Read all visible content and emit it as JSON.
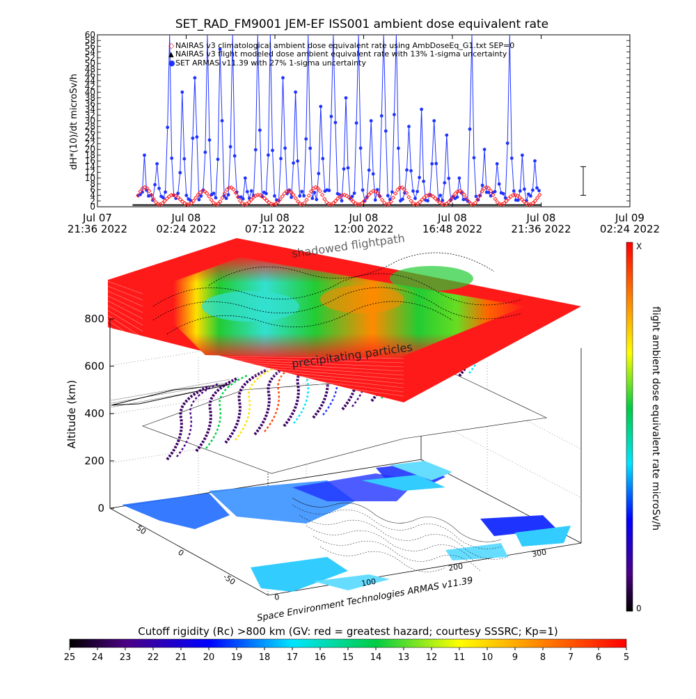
{
  "chart_data": [
    {
      "type": "line",
      "title": "SET_RAD_FM9001  JEM-EF ISS001 ambient dose equivalent rate",
      "ylabel": "dH*(10)/dt microSv/h",
      "ylim": [
        0,
        60
      ],
      "yticks": [
        0,
        2,
        4,
        6,
        8,
        10,
        12,
        14,
        16,
        18,
        20,
        22,
        24,
        26,
        28,
        30,
        32,
        34,
        36,
        38,
        40,
        42,
        44,
        46,
        48,
        50,
        52,
        54,
        56,
        58,
        60
      ],
      "xticks": [
        {
          "l1": "Jul 07",
          "l2": "21:36 2022"
        },
        {
          "l1": "Jul 08",
          "l2": "02:24 2022"
        },
        {
          "l1": "Jul 08",
          "l2": "07:12 2022"
        },
        {
          "l1": "Jul 08",
          "l2": "12:00 2022"
        },
        {
          "l1": "Jul 08",
          "l2": "16:48 2022"
        },
        {
          "l1": "Jul 08",
          "l2": "21:36 2022"
        },
        {
          "l1": "Jul 09",
          "l2": "02:24 2022"
        }
      ],
      "xlim_hours": [
        0,
        28.8
      ],
      "legend_position": "top-left",
      "series": [
        {
          "name": "NAIRAS v3 climatological ambient dose equivalent rate using AmbDoseEq_G1.txt SEP=0",
          "symbol": "open-diamond",
          "color": "#ff2020",
          "period_hours": 1.54,
          "min": 0.8,
          "max": 7.0,
          "start": 2.2,
          "end": 24.0
        },
        {
          "name": "NAIRAS v3 flight modeled dose ambient equivalent rate with 13% 1-sigma uncertainty",
          "symbol": "triangle",
          "color": "#000000",
          "value": 0.6,
          "start": 2.2,
          "end": 24.0
        },
        {
          "name": "SET ARMAS v11.39 with 27% 1-sigma uncertainty",
          "symbol": "filled-circle",
          "color": "#1f33ff",
          "start": 2.2,
          "end": 24.0,
          "baseline": [
            2,
            6
          ],
          "peaks": [
            18,
            15,
            62,
            40,
            45,
            62,
            55,
            60,
            10,
            62,
            62,
            45,
            40,
            62,
            35,
            62,
            38,
            62,
            30,
            62,
            62,
            28,
            34,
            30,
            25,
            10,
            62,
            20,
            15,
            62,
            18,
            16
          ]
        }
      ]
    },
    {
      "type": "3d-surface",
      "zlabel": "Altitude (km)",
      "zticks": [
        0,
        200,
        400,
        600,
        800
      ],
      "lat_ticks": [
        50,
        0,
        -50
      ],
      "lon_ticks": [
        0,
        100,
        200,
        300
      ],
      "annotations": [
        "shadowed flightpath",
        "precipitating particles"
      ],
      "credit": "Space Environment Technologies ARMAS v11.39"
    }
  ],
  "colorbar_right": {
    "label": "flight ambient dose equivalent rate microSv/h",
    "top_label": "X",
    "bottom_label": "0"
  },
  "colorbar_bottom": {
    "label": "Cutoff rigidity (Rc) >800 km (GV: red = greatest hazard; courtesy SSSRC; Kp=1)",
    "ticks": [
      "25",
      "24",
      "23",
      "22",
      "21",
      "20",
      "19",
      "18",
      "17",
      "16",
      "15",
      "14",
      "13",
      "12",
      "11",
      "10",
      "9",
      "8",
      "7",
      "6",
      "5"
    ]
  },
  "colors": {
    "red": "#ff1a1a",
    "blue": "#1f33ff",
    "cyan": "#33ccff",
    "land": "#ffffff"
  }
}
